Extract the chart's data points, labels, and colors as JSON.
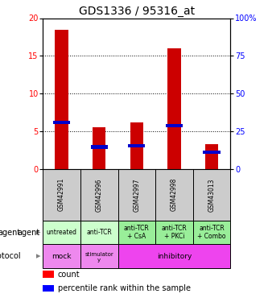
{
  "title": "GDS1336 / 95316_at",
  "samples": [
    "GSM42991",
    "GSM42996",
    "GSM42997",
    "GSM42998",
    "GSM43013"
  ],
  "count_values": [
    18.5,
    5.5,
    6.2,
    16.0,
    3.3
  ],
  "percentile_values": [
    6.2,
    2.9,
    3.1,
    5.7,
    2.2
  ],
  "pct_bar_height": 0.45,
  "ylim": [
    0,
    20
  ],
  "yticks_left": [
    0,
    5,
    10,
    15,
    20
  ],
  "yticks_right": [
    0,
    25,
    50,
    75,
    100
  ],
  "ytick_right_labels": [
    "0",
    "25",
    "50",
    "75",
    "100%"
  ],
  "agent_labels": [
    "untreated",
    "anti-TCR",
    "anti-TCR\n+ CsA",
    "anti-TCR\n+ PKCi",
    "anti-TCR\n+ Combo"
  ],
  "bar_color": "#cc0000",
  "pct_color": "#0000cc",
  "sample_bg": "#cccccc",
  "agent_bg": "#ccffcc",
  "agent_bg_dark": "#99ee99",
  "protocol_mock_bg": "#ee88ee",
  "protocol_stim_bg": "#ee88ee",
  "protocol_inhib_bg": "#ee44ee",
  "title_fontsize": 10,
  "tick_fontsize": 7,
  "sample_fontsize": 5.5,
  "agent_fontsize": 5.5,
  "protocol_fontsize": 6.5,
  "bar_width": 0.35
}
